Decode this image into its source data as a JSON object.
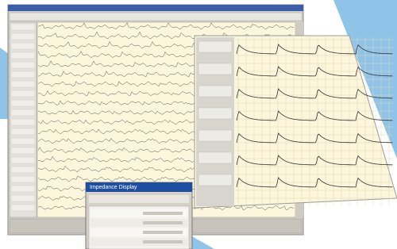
{
  "dialog": {
    "title": "Impedance Display"
  }
}
